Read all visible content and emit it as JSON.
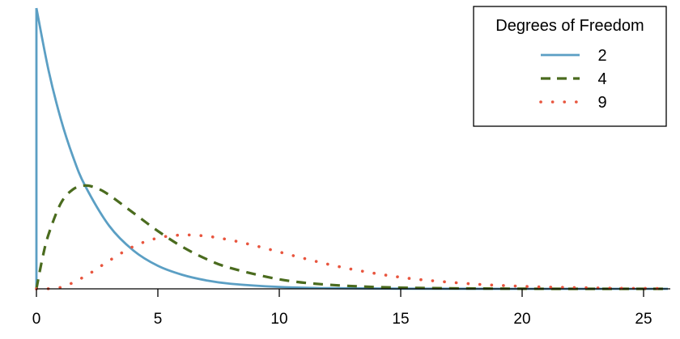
{
  "chart_data": {
    "type": "line",
    "title": "",
    "xlabel": "",
    "ylabel": "",
    "xlim": [
      0,
      26
    ],
    "ylim": [
      0,
      0.5
    ],
    "grid": false,
    "x_ticks": [
      0,
      5,
      10,
      15,
      20,
      25
    ],
    "x_tick_labels": [
      "0",
      "5",
      "10",
      "15",
      "20",
      "25"
    ],
    "legend": {
      "title": "Degrees of Freedom",
      "placement": "top-right"
    },
    "series": [
      {
        "name": "2",
        "style": "solid",
        "color": "#5b9fc4",
        "x": [
          0,
          0.5,
          1,
          1.5,
          2,
          3,
          4,
          5,
          6,
          7,
          8,
          10,
          12,
          15,
          20,
          25,
          26
        ],
        "y": [
          0.5,
          0.389,
          0.303,
          0.236,
          0.184,
          0.112,
          0.068,
          0.041,
          0.025,
          0.015,
          0.009,
          0.0034,
          0.0012,
          0.0003,
          2e-05,
          2e-06,
          1e-06
        ]
      },
      {
        "name": "4",
        "style": "dashed",
        "color": "#4a6b1e",
        "x": [
          0,
          0.25,
          0.5,
          1,
          1.5,
          2,
          2.5,
          3,
          4,
          5,
          6,
          7,
          8,
          10,
          12,
          15,
          20,
          25,
          26
        ],
        "y": [
          0,
          0.055,
          0.097,
          0.152,
          0.177,
          0.184,
          0.179,
          0.167,
          0.135,
          0.103,
          0.075,
          0.053,
          0.037,
          0.017,
          0.0074,
          0.0021,
          0.0002,
          2e-05,
          1e-05
        ]
      },
      {
        "name": "9",
        "style": "dotted",
        "color": "#e8553e",
        "x": [
          0,
          1,
          2,
          3,
          4,
          5,
          6,
          7,
          8,
          9,
          10,
          11,
          12,
          13,
          14,
          15,
          16,
          18,
          20,
          22,
          24,
          26
        ],
        "y": [
          0,
          0.0027,
          0.0224,
          0.0503,
          0.0756,
          0.0906,
          0.0959,
          0.0938,
          0.0868,
          0.0769,
          0.0657,
          0.0544,
          0.0439,
          0.0348,
          0.0271,
          0.0206,
          0.0156,
          0.0086,
          0.0045,
          0.0023,
          0.0011,
          0.0006
        ]
      }
    ]
  }
}
